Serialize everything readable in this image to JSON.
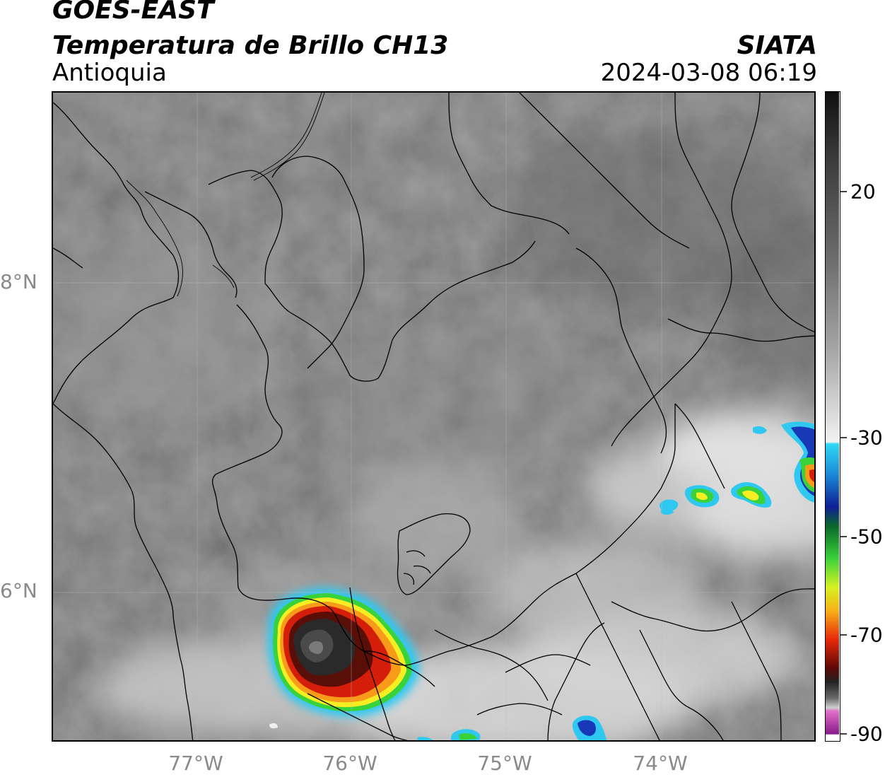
{
  "header": {
    "satellite": "GOES-EAST",
    "product": "Temperatura de Brillo CH13",
    "region": "Antioquia",
    "org": "SIATA",
    "datetime": "2024-03-08 06:19"
  },
  "map": {
    "lat_ticks": [
      "8°N",
      "6°N"
    ],
    "lon_ticks": [
      "77°W",
      "76°W",
      "75°W",
      "74°W"
    ],
    "colors": {
      "warm_low": "#595959",
      "warm_high": "#9a9a9a",
      "cold_white": "#f0f0f0",
      "cyan": "#2fc8f0",
      "green": "#3ad23a",
      "yellow": "#f6ee22",
      "orange": "#f89a1a",
      "red": "#d41e0a",
      "darkred": "#3a0a08",
      "core": "#2a2a2a",
      "boundary": "#000000"
    }
  },
  "colorbar": {
    "tick_labels": [
      "20",
      "-30",
      "-50",
      "-70",
      "-90"
    ],
    "unit_note": ""
  }
}
